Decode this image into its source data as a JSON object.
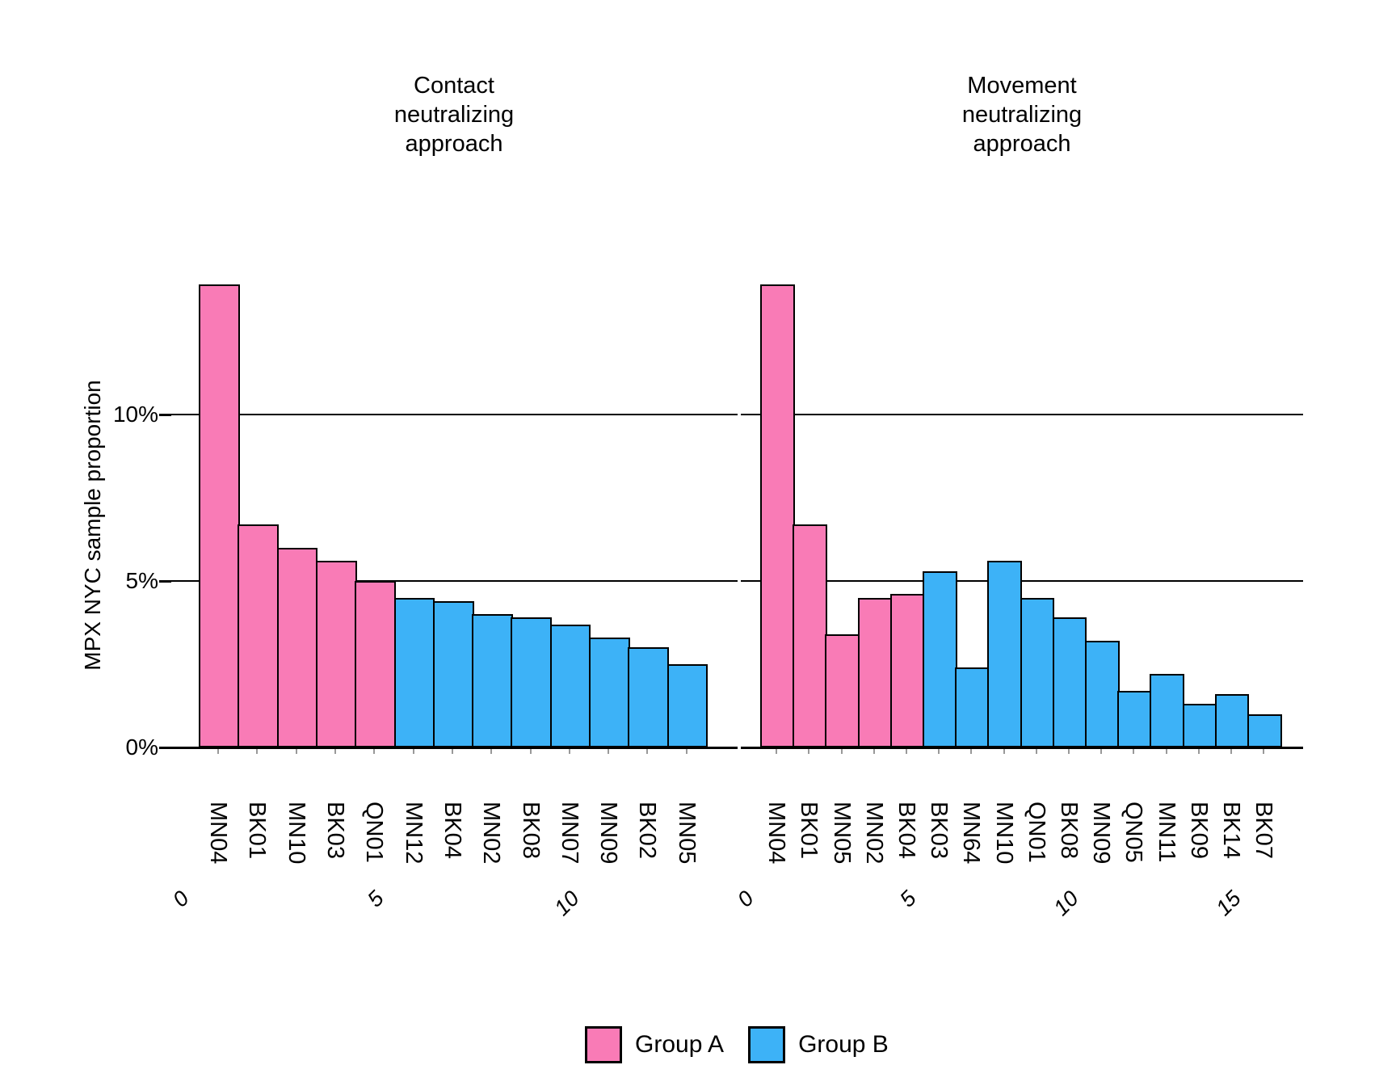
{
  "y_axis": {
    "label": "MPX NYC sample proportion",
    "ticks": [
      {
        "label": "0%",
        "value": 0
      },
      {
        "label": "5%",
        "value": 5
      },
      {
        "label": "10%",
        "value": 10
      }
    ]
  },
  "legend": {
    "items": [
      {
        "label": "Group A",
        "group": "A",
        "color": "#F97BB6"
      },
      {
        "label": "Group B",
        "group": "B",
        "color": "#3DB2F7"
      }
    ]
  },
  "colors": {
    "group_a": "#F97BB6",
    "group_b": "#3DB2F7",
    "bar_border": "#000000",
    "grid": "#000000"
  },
  "chart_data": [
    {
      "type": "bar",
      "title": "Contact neutralizing approach",
      "title_lines": [
        "Contact",
        "neutralizing",
        "approach"
      ],
      "categories": [
        "MN04",
        "BK01",
        "MN10",
        "BK03",
        "QN01",
        "MN12",
        "BK04",
        "MN02",
        "BK08",
        "MN07",
        "MN09",
        "BK02",
        "MN05"
      ],
      "values": [
        13.9,
        6.7,
        6.0,
        5.6,
        5.0,
        4.5,
        4.4,
        4.0,
        3.9,
        3.7,
        3.3,
        3.0,
        2.5
      ],
      "groups": [
        "A",
        "A",
        "A",
        "A",
        "A",
        "B",
        "B",
        "B",
        "B",
        "B",
        "B",
        "B",
        "B"
      ],
      "x_numeric_ticks": [
        0,
        5,
        10
      ],
      "xlabel": "",
      "ylabel": "MPX NYC sample proportion",
      "ytick_labels": [
        "0%",
        "5%",
        "10%"
      ],
      "ylim": [
        0,
        14.5
      ],
      "grid_values": [
        5,
        10
      ],
      "legend_position": "bottom"
    },
    {
      "type": "bar",
      "title": "Movement neutralizing approach",
      "title_lines": [
        "Movement",
        "neutralizing",
        "approach"
      ],
      "categories": [
        "MN04",
        "BK01",
        "MN05",
        "MN02",
        "BK04",
        "BK03",
        "MN64",
        "MN10",
        "QN01",
        "BK08",
        "MN09",
        "QN05",
        "MN11",
        "BK09",
        "BK14",
        "BK07"
      ],
      "values": [
        13.9,
        6.7,
        3.4,
        4.5,
        4.6,
        5.3,
        2.4,
        5.6,
        4.5,
        3.9,
        3.2,
        1.7,
        2.2,
        1.3,
        1.6,
        1.0
      ],
      "groups": [
        "A",
        "A",
        "A",
        "A",
        "A",
        "B",
        "B",
        "B",
        "B",
        "B",
        "B",
        "B",
        "B",
        "B",
        "B",
        "B"
      ],
      "x_numeric_ticks": [
        0,
        5,
        10,
        15
      ],
      "xlabel": "",
      "ylabel": "MPX NYC sample proportion",
      "ytick_labels": [
        "0%",
        "5%",
        "10%"
      ],
      "ylim": [
        0,
        14.5
      ],
      "grid_values": [
        5,
        10
      ],
      "legend_position": "bottom"
    }
  ]
}
